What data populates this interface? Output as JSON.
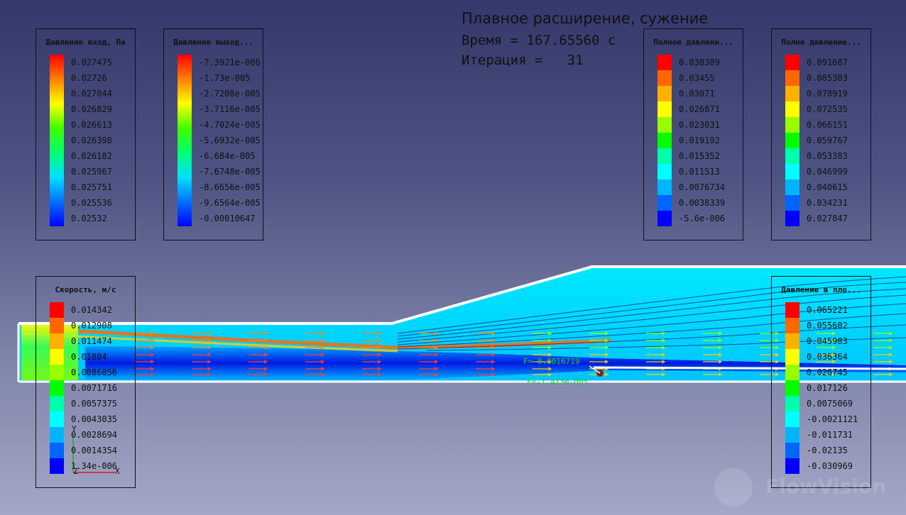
{
  "header": {
    "title": "Плавное расширение, сужение",
    "time_line": "Время = 167.65560 с",
    "iter_line": "Итерация =   31"
  },
  "palettes": {
    "smooth": [
      "#0000ff",
      "#0070ff",
      "#00e0ff",
      "#00ff70",
      "#40ff00",
      "#ffff00",
      "#ff8000",
      "#ff0000"
    ],
    "steps11": [
      "#0000ff",
      "#0066ff",
      "#00b4ff",
      "#00ffff",
      "#00ffaa",
      "#00ff00",
      "#99ff00",
      "#ffff00",
      "#ffb000",
      "#ff6600",
      "#ff0000"
    ]
  },
  "legends": [
    {
      "id": "pressure-in",
      "title": "Давление вход, Па",
      "style": "smooth",
      "values": [
        "0.027475",
        "0.02726",
        "0.027044",
        "0.026829",
        "0.026613",
        "0.026398",
        "0.026182",
        "0.025967",
        "0.025751",
        "0.025536",
        "0.02532"
      ]
    },
    {
      "id": "pressure-out",
      "title": "Давление выход...",
      "style": "smooth",
      "values": [
        "-7.3921e-006",
        "-1.73e-005",
        "-2.7208e-005",
        "-3.7116e-005",
        "-4.7024e-005",
        "-5.6932e-005",
        "-6.684e-005",
        "-7.6748e-005",
        "-8.6656e-005",
        "-9.6564e-005",
        "-0.00010647"
      ]
    },
    {
      "id": "total-pressure-1",
      "title": "Полное давлени...",
      "style": "steps",
      "values": [
        "0.038389",
        "0.03455",
        "0.03071",
        "0.026871",
        "0.023031",
        "0.019192",
        "0.015352",
        "0.011513",
        "0.0076734",
        "0.0038339",
        "-5.6e-006"
      ]
    },
    {
      "id": "total-pressure-2",
      "title": "Полне давление...",
      "style": "steps",
      "values": [
        "0.091687",
        "0.085303",
        "0.078919",
        "0.072535",
        "0.066151",
        "0.059767",
        "0.053383",
        "0.046999",
        "0.040615",
        "0.034231",
        "0.027847"
      ]
    },
    {
      "id": "velocity",
      "title": "Скорость, м/с",
      "style": "steps",
      "values": [
        "0.014342",
        "0.012908",
        "0.011474",
        "0.01004",
        "0.0086056",
        "0.0071716",
        "0.0057375",
        "0.0043035",
        "0.0028694",
        "0.0014354",
        "1.34e-006"
      ]
    },
    {
      "id": "plane-pressure",
      "title": "Давление в пло...",
      "style": "steps",
      "values": [
        "0.065221",
        "0.055602",
        "0.045983",
        "0.036364",
        "0.026745",
        "0.017126",
        "0.0075069",
        "-0.0021121",
        "-0.011731",
        "-0.02135",
        "-0.030969"
      ]
    }
  ],
  "force": {
    "line1": "F=-0.0016719",
    "line2": "F=-1.413e-005"
  },
  "axes": {
    "y": "Y",
    "z": "Z",
    "x": "X"
  },
  "brand": "FlowVision"
}
